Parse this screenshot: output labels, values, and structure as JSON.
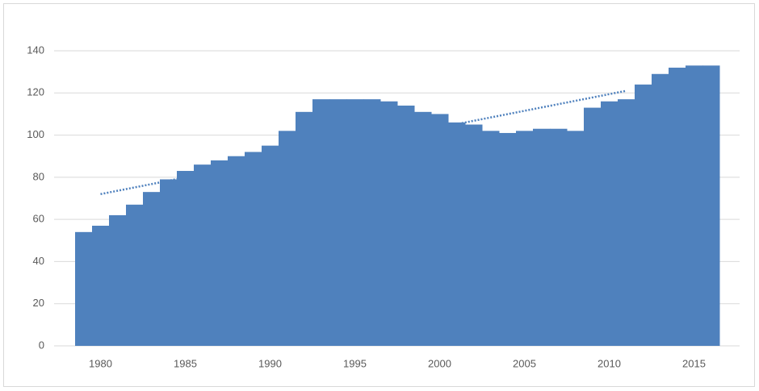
{
  "chart_data": {
    "type": "bar",
    "x": [
      1979,
      1980,
      1981,
      1982,
      1983,
      1984,
      1985,
      1986,
      1987,
      1988,
      1989,
      1990,
      1991,
      1992,
      1993,
      1994,
      1995,
      1996,
      1997,
      1998,
      1999,
      2000,
      2001,
      2002,
      2003,
      2004,
      2005,
      2006,
      2007,
      2008,
      2009,
      2010,
      2011,
      2012,
      2013,
      2014,
      2015,
      2016
    ],
    "values": [
      54,
      57,
      62,
      67,
      73,
      79,
      83,
      86,
      88,
      90,
      92,
      95,
      102,
      111,
      117,
      117,
      117,
      117,
      116,
      114,
      111,
      110,
      106,
      105,
      102,
      101,
      102,
      103,
      103,
      102,
      113,
      116,
      117,
      124,
      129,
      132,
      133,
      133
    ],
    "color": "#4f81bd",
    "trend": {
      "type": "line",
      "x": [
        1980,
        2011
      ],
      "values": [
        72,
        121
      ],
      "color": "#4f81bd",
      "style": "dotted"
    },
    "xlim": [
      1978.5,
      2016.5
    ],
    "xticks": [
      1980,
      1985,
      1990,
      1995,
      2000,
      2005,
      2010,
      2015
    ],
    "ylim": [
      0,
      140
    ],
    "yticks": [
      0,
      20,
      40,
      60,
      80,
      100,
      120,
      140
    ],
    "grid": true
  }
}
